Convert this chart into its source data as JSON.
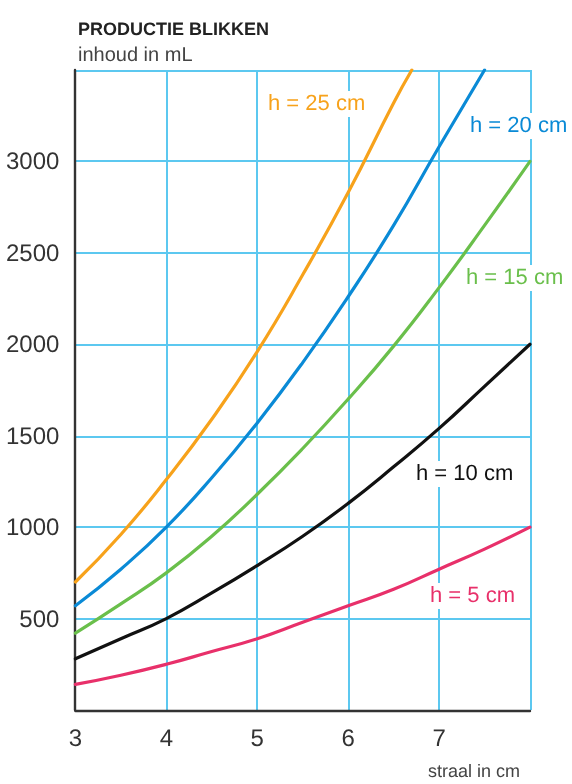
{
  "chart_data": {
    "type": "line",
    "title": "PRODUCTIE BLIKKEN",
    "ylabel": "inhoud in mL",
    "xlabel": "straal in cm",
    "xlim": [
      3,
      8
    ],
    "xticks": [
      3,
      4,
      5,
      6,
      7,
      {
        "value": 8,
        "label": null
      }
    ],
    "ylim": [
      0,
      3500
    ],
    "yticks": [
      500,
      1000,
      1500,
      2000,
      2500,
      3000,
      {
        "value": 3500,
        "label": null
      }
    ],
    "grid": true,
    "marker": "none",
    "line_style": "solid",
    "series": [
      {
        "name": "h = 5 cm",
        "color": "#e8306a",
        "x": [
          3,
          3.5,
          4,
          4.5,
          5,
          5.5,
          6,
          6.5,
          7,
          7.5,
          8
        ],
        "values": [
          140,
          190,
          250,
          320,
          390,
          480,
          570,
          660,
          770,
          880,
          1000
        ]
      },
      {
        "name": "h = 10 cm",
        "color": "#111111",
        "x": [
          3,
          3.5,
          4,
          4.5,
          5,
          5.5,
          6,
          6.5,
          7,
          7.5,
          8
        ],
        "values": [
          280,
          390,
          500,
          640,
          790,
          950,
          1130,
          1330,
          1540,
          1770,
          2000
        ]
      },
      {
        "name": "h = 15 cm",
        "color": "#6abf4b",
        "x": [
          3,
          3.5,
          4,
          4.5,
          5,
          5.5,
          6,
          6.5,
          7,
          7.5,
          8
        ],
        "values": [
          420,
          580,
          750,
          950,
          1180,
          1430,
          1700,
          1990,
          2310,
          2650,
          3000
        ]
      },
      {
        "name": "h = 20 cm",
        "color": "#0a8ad6",
        "x": [
          3,
          3.5,
          4,
          4.5,
          5,
          5.5,
          6,
          6.5,
          7,
          7.5
        ],
        "values": [
          570,
          770,
          1000,
          1270,
          1570,
          1900,
          2260,
          2650,
          3080,
          3500
        ]
      },
      {
        "name": "h = 25 cm",
        "color": "#f7a21b",
        "x": [
          3,
          3.5,
          4,
          4.5,
          5,
          5.5,
          6,
          6.5,
          6.7
        ],
        "values": [
          700,
          960,
          1260,
          1590,
          1960,
          2380,
          2830,
          3320,
          3500
        ]
      }
    ]
  }
}
